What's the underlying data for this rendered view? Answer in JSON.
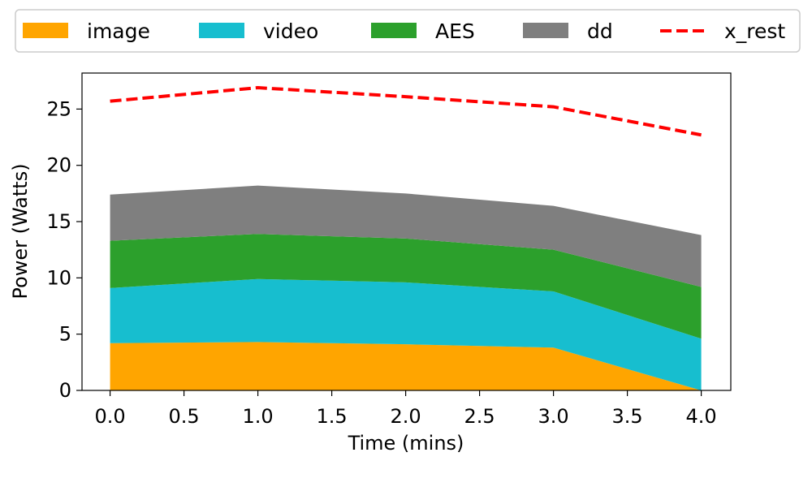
{
  "chart_data": {
    "type": "area",
    "stacked": true,
    "x": [
      0,
      1,
      2,
      3,
      4
    ],
    "series": [
      {
        "name": "image",
        "color": "#FFA500",
        "values": [
          4.2,
          4.3,
          4.1,
          3.8,
          0.0
        ]
      },
      {
        "name": "video",
        "color": "#17BECF",
        "values": [
          4.9,
          5.6,
          5.5,
          5.0,
          4.6
        ]
      },
      {
        "name": "AES",
        "color": "#2CA02C",
        "values": [
          4.2,
          4.0,
          3.9,
          3.7,
          4.6
        ]
      },
      {
        "name": "dd",
        "color": "#7F7F7F",
        "values": [
          4.1,
          4.3,
          4.0,
          3.9,
          4.6
        ]
      }
    ],
    "line_series": [
      {
        "name": "x_rest",
        "color": "#FF0000",
        "style": "dashed",
        "values": [
          25.7,
          26.9,
          26.1,
          25.2,
          22.7
        ]
      }
    ],
    "xlabel": "Time (mins)",
    "ylabel": "Power (Watts)",
    "xlim": [
      -0.19,
      4.2
    ],
    "ylim": [
      0,
      28.2
    ],
    "xticks": [
      "0.0",
      "0.5",
      "1.0",
      "1.5",
      "2.0",
      "2.5",
      "3.0",
      "3.5",
      "4.0"
    ],
    "xtick_values": [
      0,
      0.5,
      1,
      1.5,
      2,
      2.5,
      3,
      3.5,
      4
    ],
    "yticks": [
      "0",
      "5",
      "10",
      "15",
      "20",
      "25"
    ],
    "ytick_values": [
      0,
      5,
      10,
      15,
      20,
      25
    ],
    "legend": {
      "placement": "top-center",
      "columns": 5,
      "entries": [
        "image",
        "video",
        "AES",
        "dd",
        "x_rest"
      ]
    },
    "grid": false
  }
}
